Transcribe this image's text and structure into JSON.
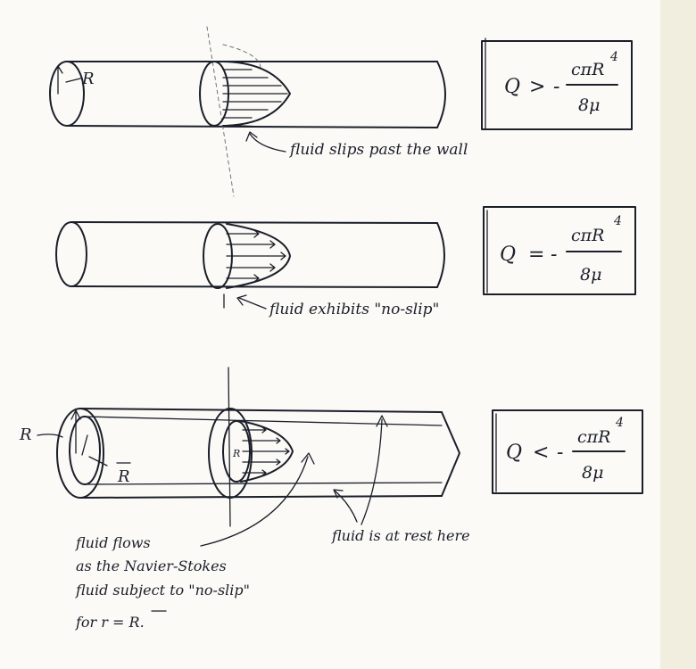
{
  "panels": [
    {
      "label_R": "R",
      "formula": {
        "lhs": "Q",
        "op": ">",
        "sign": "-",
        "numerator": "cπR",
        "exponent": "4",
        "denominator": "8μ"
      },
      "caption": "fluid slips past the wall"
    },
    {
      "formula": {
        "lhs": "Q",
        "op": "=",
        "sign": "-",
        "numerator": "cπR",
        "exponent": "4",
        "denominator": "8μ"
      },
      "caption": "fluid exhibits \"no-slip\""
    },
    {
      "label_R": "R",
      "label_Rbar": "R",
      "label_inner_R": "R",
      "formula": {
        "lhs": "Q",
        "op": "<",
        "sign": "-",
        "numerator": "cπR",
        "exponent": "4",
        "denominator": "8μ"
      },
      "note_rest": "fluid is at rest here",
      "note_flow": [
        "fluid flows",
        "as the Navier-Stokes",
        "fluid subject to \"no-slip\"",
        "for r = R."
      ]
    }
  ]
}
